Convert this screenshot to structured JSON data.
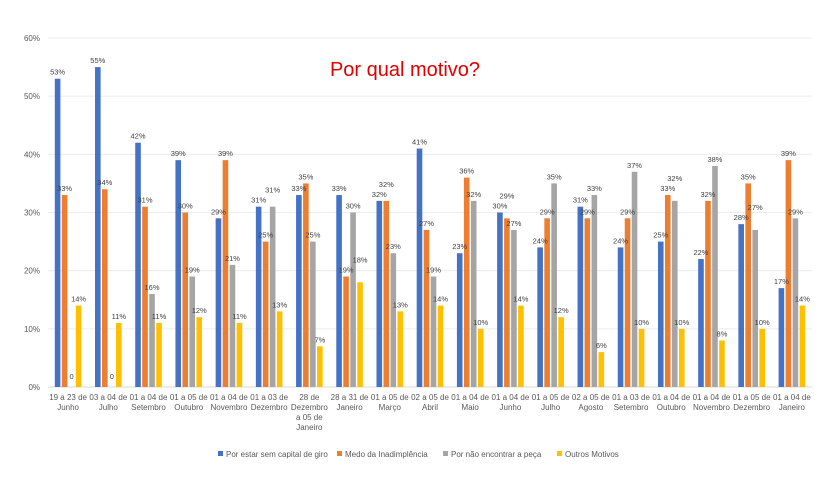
{
  "chart_data": {
    "type": "bar",
    "title": "Por qual motivo?",
    "xlabel": "",
    "ylabel": "",
    "ylim": [
      0,
      60
    ],
    "yticks": [
      "0%",
      "10%",
      "20%",
      "30%",
      "40%",
      "50%",
      "60%"
    ],
    "grid": true,
    "legend_position": "bottom",
    "categories": [
      [
        "19 a 23 de",
        "Junho"
      ],
      [
        "03 a 04 de",
        "Julho"
      ],
      [
        "01 a 04 de",
        "Setembro"
      ],
      [
        "01 a 05 de",
        "Outubro"
      ],
      [
        "01 a 04 de",
        "Novembro"
      ],
      [
        "01 a 03 de",
        "Dezembro"
      ],
      [
        "28 de",
        "Dezembro",
        "a 05 de",
        "Janeiro"
      ],
      [
        "28 a 31 de",
        "Janeiro"
      ],
      [
        "01 a 05 de",
        "Março"
      ],
      [
        "02 a 05 de",
        "Abril"
      ],
      [
        "01 a 04 de",
        "Maio"
      ],
      [
        "01 a 04 de",
        "Junho"
      ],
      [
        "01 a 05 de",
        "Julho"
      ],
      [
        "02 a 05 de",
        "Agosto"
      ],
      [
        "01 a 03 de",
        "Setembro"
      ],
      [
        "01 a 04 de",
        "Outubro"
      ],
      [
        "01 a 04 de",
        "Novembro"
      ],
      [
        "01 a 05 de",
        "Dezembro"
      ],
      [
        "01 a 04 de",
        "Janeiro"
      ]
    ],
    "series": [
      {
        "name": "Por estar sem capital de giro",
        "color": "#4472c4",
        "values": [
          53,
          55,
          42,
          39,
          29,
          31,
          33,
          33,
          32,
          41,
          23,
          30,
          24,
          31,
          24,
          25,
          22,
          28,
          17
        ],
        "labels": [
          "53%",
          "55%",
          "42%",
          "39%",
          "29%",
          "31%",
          "33%",
          "33%",
          "32%",
          "41%",
          "23%",
          "30%",
          "24%",
          "31%",
          "24%",
          "25%",
          "22%",
          "28%",
          "17%"
        ]
      },
      {
        "name": "Medo da Inadimplência",
        "color": "#ed7d31",
        "values": [
          33,
          34,
          31,
          30,
          39,
          25,
          35,
          19,
          32,
          27,
          36,
          29,
          29,
          29,
          29,
          33,
          32,
          35,
          39
        ],
        "labels": [
          "33%",
          "34%",
          "31%",
          "30%",
          "39%",
          "25%",
          "35%",
          "19%",
          "32%",
          "27%",
          "36%",
          "29%",
          "29%",
          "29%",
          "29%",
          "33%",
          "32%",
          "35%",
          "39%"
        ]
      },
      {
        "name": "Por não encontrar a peça",
        "color": "#a5a5a5",
        "values": [
          0,
          0,
          16,
          19,
          21,
          31,
          25,
          30,
          23,
          19,
          32,
          27,
          35,
          33,
          37,
          32,
          38,
          27,
          29
        ],
        "labels": [
          "0",
          "0",
          "16%",
          "19%",
          "21%",
          "31%",
          "25%",
          "30%",
          "23%",
          "19%",
          "32%",
          "27%",
          "35%",
          "33%",
          "37%",
          "32%",
          "38%",
          "27%",
          "29%"
        ]
      },
      {
        "name": "Outros Motivos",
        "color": "#ffc000",
        "values": [
          14,
          11,
          11,
          12,
          11,
          13,
          7,
          18,
          13,
          14,
          10,
          14,
          12,
          6,
          10,
          10,
          8,
          10,
          14
        ],
        "labels": [
          "14%",
          "11%",
          "11%",
          "12%",
          "11%",
          "13%",
          "7%",
          "18%",
          "13%",
          "14%",
          "10%",
          "14%",
          "12%",
          "6%",
          "10%",
          "10%",
          "8%",
          "10%",
          "14%"
        ]
      }
    ]
  }
}
